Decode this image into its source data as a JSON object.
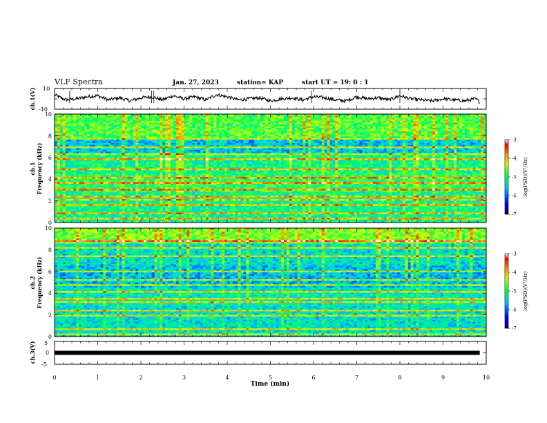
{
  "header": {
    "title": "VLF Spectra",
    "date": "Jan. 27, 2023",
    "station": "station= KAP",
    "start": "start  UT =   19: 0  : 1"
  },
  "chart_data": [
    {
      "type": "line",
      "name": "ch1-waveform",
      "ylabel": "ch.1(V)",
      "ylim": [
        -10,
        10
      ],
      "yticks": [
        "10",
        "-10"
      ],
      "xlim": [
        0,
        10
      ],
      "x": [
        0,
        0.25,
        0.5,
        0.75,
        1,
        1.25,
        1.5,
        1.75,
        2,
        2.25,
        2.5,
        2.75,
        3,
        3.25,
        3.5,
        3.75,
        4,
        4.25,
        4.5,
        4.75,
        5,
        5.25,
        5.5,
        5.75,
        6,
        6.25,
        6.5,
        6.75,
        7,
        7.25,
        7.5,
        7.75,
        8,
        8.25,
        8.5,
        8.75,
        9,
        9.25,
        9.5,
        9.75,
        9.85
      ],
      "y": [
        4,
        -1,
        0,
        2,
        3,
        -1,
        1,
        -2,
        1,
        2,
        -1,
        3,
        0,
        2,
        -1,
        4,
        2,
        -1,
        0,
        1,
        -2,
        0,
        1,
        -1,
        2,
        1,
        -1,
        -2,
        2,
        0,
        1,
        -1,
        3,
        0,
        -1,
        -2,
        0,
        -1,
        -2,
        0,
        -3
      ]
    },
    {
      "type": "heatmap",
      "name": "ch1-spectrogram",
      "ylabel": "Frequency (kHz)",
      "channel": "ch.1",
      "ylim": [
        0,
        10
      ],
      "yticks": [
        "0",
        "2",
        "4",
        "6",
        "8",
        "10"
      ],
      "xlim": [
        0,
        10
      ],
      "colorbar": {
        "label": "log(PSD)(V²/Hz)",
        "range": [
          -7,
          -3
        ],
        "ticks": [
          "-3",
          "-4",
          "-5",
          "-6",
          "-7"
        ]
      }
    },
    {
      "type": "heatmap",
      "name": "ch2-spectrogram",
      "ylabel": "Frequency (kHz)",
      "channel": "ch.2",
      "ylim": [
        0,
        10
      ],
      "yticks": [
        "0",
        "2",
        "4",
        "6",
        "8",
        "10"
      ],
      "xlim": [
        0,
        10
      ],
      "colorbar": {
        "label": "log(PSD)(V²/Hz)",
        "range": [
          -7,
          -3
        ],
        "ticks": [
          "-3",
          "-4",
          "-5",
          "-6",
          "-7"
        ]
      }
    },
    {
      "type": "line",
      "name": "ch3-waveform",
      "ylabel": "ch.3(V)",
      "ylim": [
        -5,
        5
      ],
      "yticks": [
        "5",
        "0",
        "-5"
      ],
      "xlim": [
        0,
        10
      ],
      "x": [
        0,
        9.85
      ],
      "y": [
        0,
        0
      ]
    }
  ],
  "xaxis": {
    "label": "Time  (min)",
    "ticks": [
      "0",
      "1",
      "2",
      "3",
      "4",
      "5",
      "6",
      "7",
      "8",
      "9",
      "10"
    ]
  }
}
